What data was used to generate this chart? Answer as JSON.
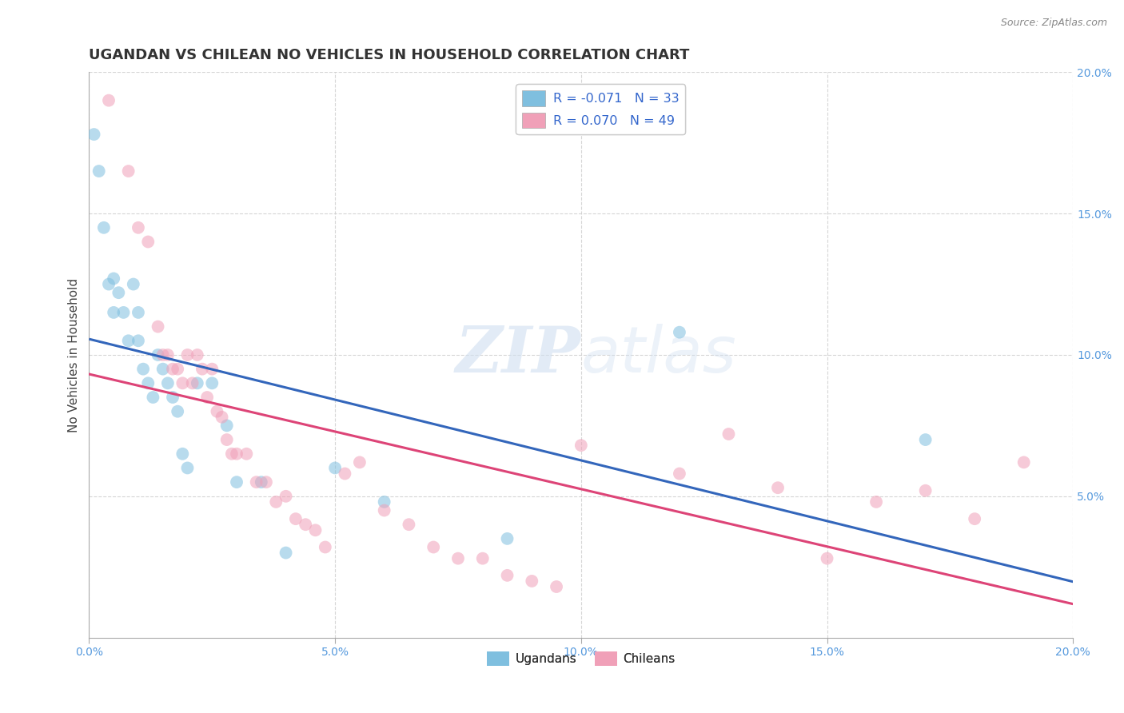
{
  "title": "UGANDAN VS CHILEAN NO VEHICLES IN HOUSEHOLD CORRELATION CHART",
  "source": "Source: ZipAtlas.com",
  "ylabel": "No Vehicles in Household",
  "watermark_zip": "ZIP",
  "watermark_atlas": "atlas",
  "ugandan_color": "#7fbfdf",
  "chilean_color": "#f0a0b8",
  "ugandan_R": -0.071,
  "ugandan_N": 33,
  "chilean_R": 0.07,
  "chilean_N": 49,
  "ugandan_line_color": "#3366bb",
  "chilean_line_color": "#dd4477",
  "xlim": [
    0.0,
    0.2
  ],
  "ylim": [
    0.0,
    0.2
  ],
  "xticks": [
    0.0,
    0.05,
    0.1,
    0.15,
    0.2
  ],
  "yticks": [
    0.05,
    0.1,
    0.15,
    0.2
  ],
  "ugandan_x": [
    0.001,
    0.002,
    0.003,
    0.004,
    0.005,
    0.005,
    0.006,
    0.007,
    0.008,
    0.009,
    0.01,
    0.01,
    0.011,
    0.012,
    0.013,
    0.014,
    0.015,
    0.016,
    0.017,
    0.018,
    0.019,
    0.02,
    0.022,
    0.025,
    0.028,
    0.03,
    0.035,
    0.04,
    0.05,
    0.06,
    0.085,
    0.12,
    0.17
  ],
  "ugandan_y": [
    0.178,
    0.165,
    0.145,
    0.125,
    0.115,
    0.127,
    0.122,
    0.115,
    0.105,
    0.125,
    0.115,
    0.105,
    0.095,
    0.09,
    0.085,
    0.1,
    0.095,
    0.09,
    0.085,
    0.08,
    0.065,
    0.06,
    0.09,
    0.09,
    0.075,
    0.055,
    0.055,
    0.03,
    0.06,
    0.048,
    0.035,
    0.108,
    0.07
  ],
  "chilean_x": [
    0.004,
    0.008,
    0.01,
    0.012,
    0.014,
    0.015,
    0.016,
    0.017,
    0.018,
    0.019,
    0.02,
    0.021,
    0.022,
    0.023,
    0.024,
    0.025,
    0.026,
    0.027,
    0.028,
    0.029,
    0.03,
    0.032,
    0.034,
    0.036,
    0.038,
    0.04,
    0.042,
    0.044,
    0.046,
    0.048,
    0.052,
    0.055,
    0.06,
    0.065,
    0.07,
    0.075,
    0.08,
    0.085,
    0.09,
    0.095,
    0.1,
    0.12,
    0.14,
    0.16,
    0.18,
    0.19,
    0.13,
    0.15,
    0.17
  ],
  "chilean_y": [
    0.19,
    0.165,
    0.145,
    0.14,
    0.11,
    0.1,
    0.1,
    0.095,
    0.095,
    0.09,
    0.1,
    0.09,
    0.1,
    0.095,
    0.085,
    0.095,
    0.08,
    0.078,
    0.07,
    0.065,
    0.065,
    0.065,
    0.055,
    0.055,
    0.048,
    0.05,
    0.042,
    0.04,
    0.038,
    0.032,
    0.058,
    0.062,
    0.045,
    0.04,
    0.032,
    0.028,
    0.028,
    0.022,
    0.02,
    0.018,
    0.068,
    0.058,
    0.053,
    0.048,
    0.042,
    0.062,
    0.072,
    0.028,
    0.052
  ],
  "legend_labels": [
    "Ugandans",
    "Chileans"
  ],
  "background_color": "#ffffff",
  "grid_color": "#cccccc",
  "title_fontsize": 13,
  "label_fontsize": 11,
  "tick_fontsize": 10,
  "tick_color": "#5599dd",
  "marker_size": 130,
  "marker_alpha": 0.55
}
